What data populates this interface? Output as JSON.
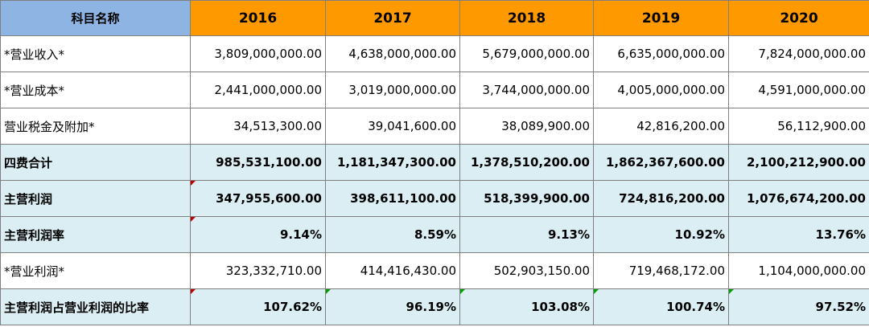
{
  "header": {
    "name": "科目名称",
    "years": [
      "2016",
      "2017",
      "2018",
      "2019",
      "2020"
    ]
  },
  "rows": [
    {
      "label": "*营业收入*",
      "values": [
        "3,809,000,000.00",
        "4,638,000,000.00",
        "5,679,000,000.00",
        "6,635,000,000.00",
        "7,824,000,000.00"
      ]
    },
    {
      "label": "*营业成本*",
      "values": [
        "2,441,000,000.00",
        "3,019,000,000.00",
        "3,744,000,000.00",
        "4,005,000,000.00",
        "4,591,000,000.00"
      ]
    },
    {
      "label": "营业税金及附加*",
      "values": [
        "34,513,300.00",
        "39,041,600.00",
        "38,089,900.00",
        "42,816,200.00",
        "56,112,900.00"
      ]
    },
    {
      "label": "四费合计",
      "values": [
        "985,531,100.00",
        "1,181,347,300.00",
        "1,378,510,200.00",
        "1,862,367,600.00",
        "2,100,212,900.00"
      ]
    },
    {
      "label": "主营利润",
      "values": [
        "347,955,600.00",
        "398,611,100.00",
        "518,399,900.00",
        "724,816,200.00",
        "1,076,674,200.00"
      ]
    },
    {
      "label": "主营利润率",
      "values": [
        "9.14%",
        "8.59%",
        "9.13%",
        "10.92%",
        "13.76%"
      ]
    },
    {
      "label": "*营业利润*",
      "values": [
        "323,332,710.00",
        "414,416,430.00",
        "502,903,150.00",
        "719,468,172.00",
        "1,104,000,000.00"
      ]
    },
    {
      "label": "主营利润占营业利润的比率",
      "values": [
        "107.62%",
        "96.19%",
        "103.08%",
        "100.74%",
        "97.52%"
      ]
    }
  ],
  "colors": {
    "header_name_bg": "#8eb4e3",
    "header_year_bg": "#ff9900",
    "highlight_row_bg": "#dbeef3",
    "border": "#7f7f7f",
    "comment_marker": "#c00000",
    "error_marker": "#00a000"
  }
}
